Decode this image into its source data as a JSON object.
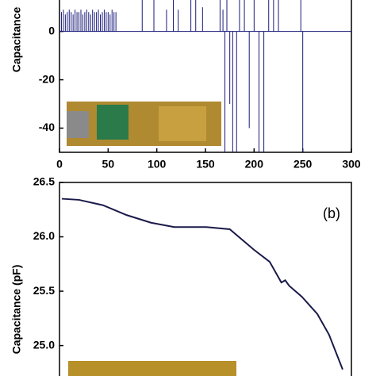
{
  "chart_data": [
    {
      "type": "spike",
      "ylabel": "Capacitance",
      "color": "#1a1a7a",
      "x": [
        2,
        4,
        6,
        8,
        10,
        12,
        14,
        16,
        18,
        20,
        22,
        24,
        26,
        28,
        30,
        32,
        34,
        36,
        38,
        40,
        42,
        44,
        46,
        48,
        50,
        52,
        54,
        56,
        58,
        85,
        97,
        110,
        117,
        122,
        135,
        140,
        147,
        165,
        168,
        170,
        172,
        175,
        178,
        182,
        185,
        190,
        195,
        200,
        205,
        210,
        215,
        220,
        225,
        248,
        250
      ],
      "values": [
        8,
        9,
        7,
        8,
        9,
        8,
        7,
        9,
        8,
        8,
        9,
        7,
        8,
        9,
        8,
        7,
        9,
        8,
        8,
        9,
        7,
        8,
        9,
        8,
        8,
        7,
        9,
        8,
        8,
        13,
        13,
        9,
        13,
        9,
        13,
        13,
        10,
        13,
        9,
        -50,
        13,
        -30,
        -50,
        -50,
        13,
        13,
        -40,
        13,
        -50,
        -50,
        13,
        13,
        13,
        13,
        -50
      ],
      "xlim": [
        0,
        300
      ],
      "xticks": [
        0,
        50,
        100,
        150,
        200,
        250,
        300
      ],
      "ylim": [
        -50,
        13
      ],
      "yticks": [
        0,
        -20,
        -40
      ]
    },
    {
      "type": "line",
      "ylabel": "Capacitance (pF)",
      "annotation": "(b)",
      "color": "#1a1a4a",
      "x": [
        2.4,
        20,
        45,
        69,
        94,
        118,
        151,
        175,
        200,
        216,
        228,
        232,
        236,
        249,
        265,
        277,
        291
      ],
      "values": [
        26.35,
        26.34,
        26.29,
        26.2,
        26.13,
        26.09,
        26.09,
        26.07,
        25.88,
        25.77,
        25.58,
        25.6,
        25.55,
        25.45,
        25.29,
        25.1,
        24.78
      ],
      "xlim": [
        0,
        300
      ],
      "ylim": [
        24.72,
        26.5
      ],
      "yticks": [
        {
          "value": 25.0,
          "label": "25.0"
        },
        {
          "value": 25.5,
          "label": "25.5"
        },
        {
          "value": 26.0,
          "label": "26.0"
        },
        {
          "value": 26.5,
          "label": "26.5"
        }
      ]
    }
  ]
}
